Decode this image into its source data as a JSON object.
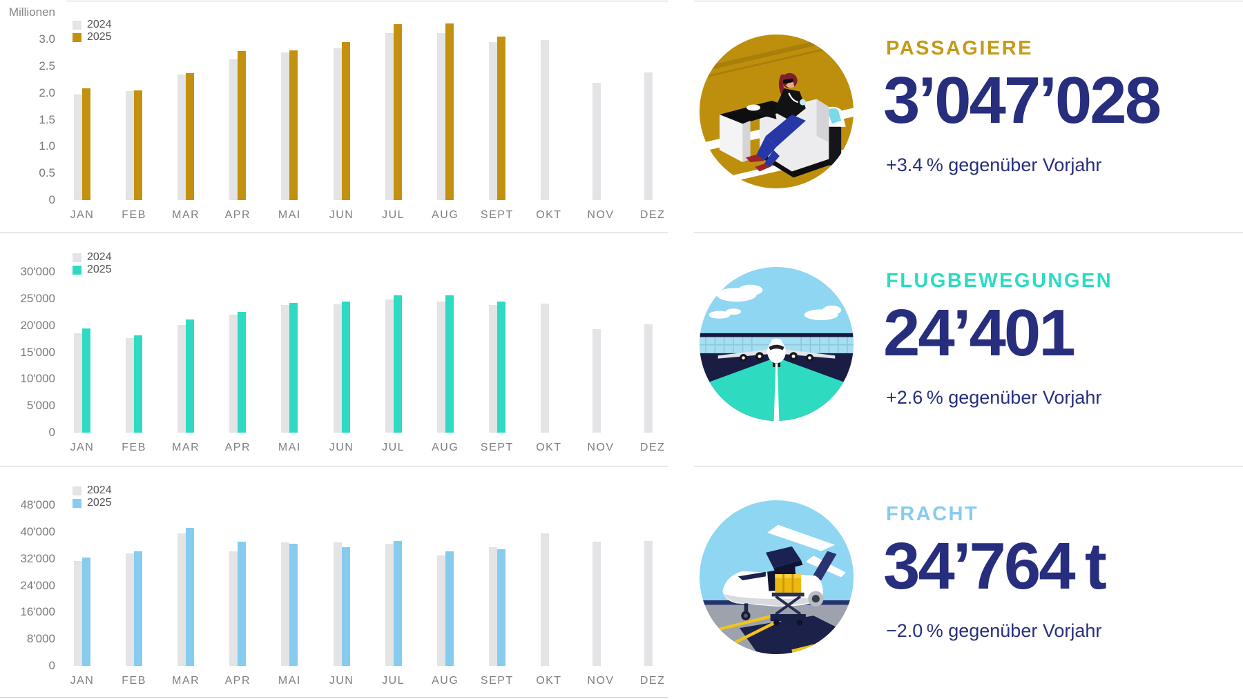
{
  "colors": {
    "navy_text": "#272e7d",
    "bar_2024_gray": "#e4e4e7",
    "divider_gray": "#c9cacc"
  },
  "sections": [
    {
      "heading": "PASSAGIERE",
      "value": "3’047’028",
      "delta": "+3.4 % gegenüber Vorjahr",
      "accent": "#c49a18",
      "illustration": "woman-in-airport-lounge"
    },
    {
      "heading": "FLUGBEWEGUNGEN",
      "value": "24’401",
      "delta": "+2.6 % gegenüber Vorjahr",
      "accent": "#2bdcc2",
      "illustration": "airplane-on-runway"
    },
    {
      "heading": "FRACHT",
      "value": "34’764 t",
      "delta": "−2.0 % gegenüber Vorjahr",
      "accent": "#87cbee",
      "illustration": "cargo-plane-loading"
    }
  ],
  "chart_data": [
    {
      "id": "passagiere",
      "type": "bar",
      "title": "Passagiere",
      "unit_label": "Millionen",
      "categories": [
        "JAN",
        "FEB",
        "MAR",
        "APR",
        "MAI",
        "JUN",
        "JUL",
        "AUG",
        "SEPT",
        "OKT",
        "NOV",
        "DEZ"
      ],
      "y_max": 3.0,
      "y_ticks": [
        {
          "v": 3.0,
          "label": "3.0"
        },
        {
          "v": 2.5,
          "label": "2.5"
        },
        {
          "v": 2.0,
          "label": "2.0"
        },
        {
          "v": 1.5,
          "label": "1.5"
        },
        {
          "v": 1.0,
          "label": "1.0"
        },
        {
          "v": 0.5,
          "label": "0.5"
        },
        {
          "v": 0,
          "label": "0"
        }
      ],
      "legend_position": "top-left",
      "grid": false,
      "series": [
        {
          "name": "2024",
          "color": "#e4e4e7",
          "values": [
            1.97,
            2.03,
            2.34,
            2.63,
            2.76,
            2.83,
            3.12,
            3.11,
            2.95,
            2.99,
            2.19,
            2.38
          ]
        },
        {
          "name": "2025",
          "color": "#c29110",
          "values": [
            2.09,
            2.05,
            2.37,
            2.78,
            2.79,
            2.95,
            3.28,
            3.29,
            3.05,
            null,
            null,
            null
          ]
        }
      ]
    },
    {
      "id": "flugbewegungen",
      "type": "bar",
      "title": "Flugbewegungen",
      "unit_label": "",
      "categories": [
        "JAN",
        "FEB",
        "MAR",
        "APR",
        "MAI",
        "JUN",
        "JUL",
        "AUG",
        "SEPT",
        "OKT",
        "NOV",
        "DEZ"
      ],
      "y_max": 30000,
      "y_ticks": [
        {
          "v": 30000,
          "label": "30'000"
        },
        {
          "v": 25000,
          "label": "25'000"
        },
        {
          "v": 20000,
          "label": "20'000"
        },
        {
          "v": 15000,
          "label": "15'000"
        },
        {
          "v": 10000,
          "label": "10'000"
        },
        {
          "v": 5000,
          "label": "5'000"
        },
        {
          "v": 0,
          "label": "0"
        }
      ],
      "legend_position": "top-left",
      "grid": false,
      "series": [
        {
          "name": "2024",
          "color": "#e4e4e7",
          "values": [
            18500,
            17700,
            20100,
            22000,
            23800,
            23900,
            24900,
            24400,
            23800,
            24100,
            19300,
            20200
          ]
        },
        {
          "name": "2025",
          "color": "#2edac1",
          "values": [
            19400,
            18100,
            21100,
            22500,
            24200,
            24500,
            25600,
            25600,
            24401,
            null,
            null,
            null
          ]
        }
      ]
    },
    {
      "id": "fracht",
      "type": "bar",
      "title": "Fracht",
      "unit_label": "",
      "categories": [
        "JAN",
        "FEB",
        "MAR",
        "APR",
        "MAI",
        "JUN",
        "JUL",
        "AUG",
        "SEPT",
        "OKT",
        "NOV",
        "DEZ"
      ],
      "y_max": 48000,
      "y_ticks": [
        {
          "v": 48000,
          "label": "48'000"
        },
        {
          "v": 40000,
          "label": "40'000"
        },
        {
          "v": 32000,
          "label": "32'000"
        },
        {
          "v": 24000,
          "label": "24'000"
        },
        {
          "v": 16000,
          "label": "16'000"
        },
        {
          "v": 8000,
          "label": "8'000"
        },
        {
          "v": 0,
          "label": "0"
        }
      ],
      "legend_position": "top-left",
      "grid": false,
      "series": [
        {
          "name": "2024",
          "color": "#e4e4e7",
          "values": [
            31400,
            33500,
            39500,
            34200,
            36900,
            36900,
            36500,
            33000,
            35500,
            39500,
            37000,
            37300
          ]
        },
        {
          "name": "2025",
          "color": "#87cbee",
          "values": [
            32300,
            34300,
            41300,
            37000,
            36500,
            35500,
            37200,
            34200,
            34764,
            null,
            null,
            null
          ]
        }
      ]
    }
  ]
}
